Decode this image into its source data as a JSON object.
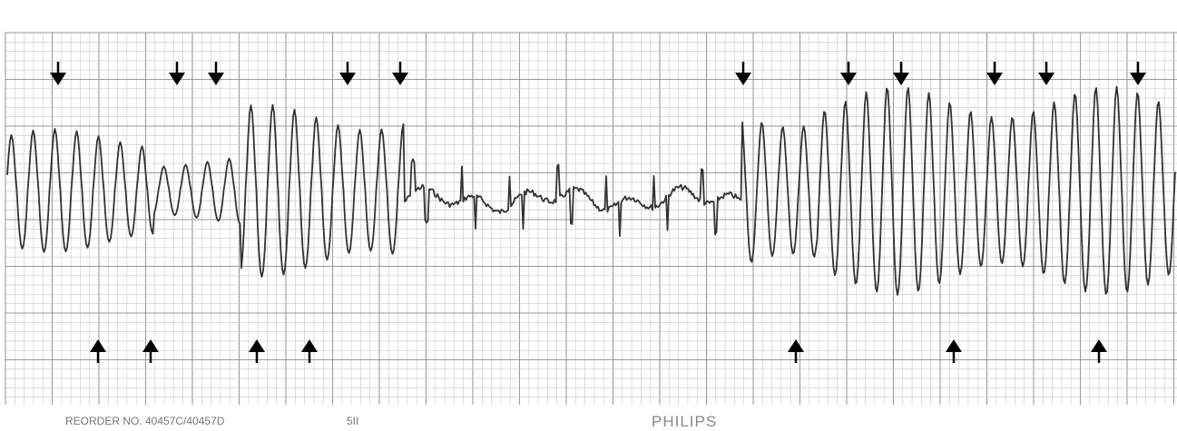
{
  "footer": {
    "reorder": "REORDER NO. 40457C/40457D",
    "lead": "5II",
    "brand": "PHILIPS"
  }
}
